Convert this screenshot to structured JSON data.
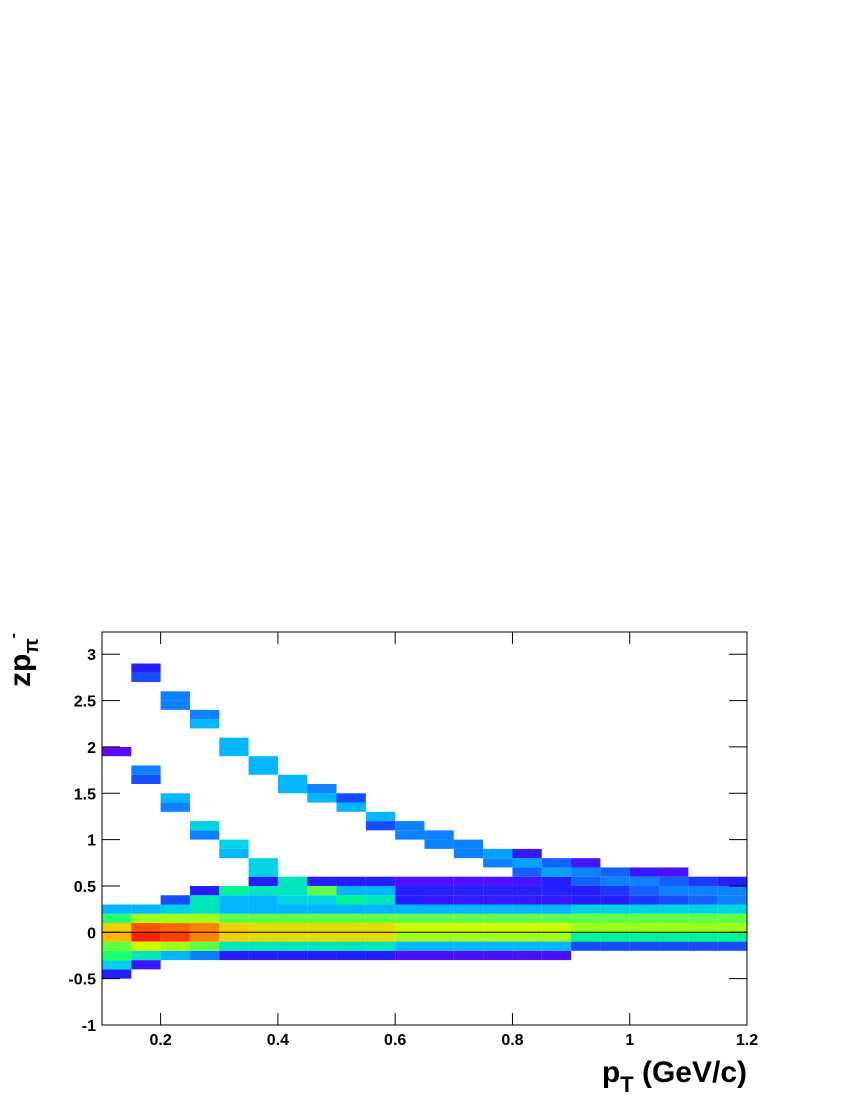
{
  "chart_data": {
    "type": "heatmap",
    "xlabel": [
      "p",
      "T",
      " (GeV/c)"
    ],
    "ylabel": [
      "zp",
      "π",
      "-"
    ],
    "xlim": [
      0.1,
      1.2
    ],
    "ylim": [
      -1,
      3.24
    ],
    "xticks": [
      0.2,
      0.4,
      0.6,
      0.8,
      1,
      1.2
    ],
    "yticks": [
      -1,
      -0.5,
      0,
      0.5,
      1,
      1.5,
      2,
      2.5,
      3
    ],
    "bin_width": [
      0.05,
      0.1
    ],
    "hline": 0,
    "palette": [
      "#7f00ff",
      "#2020ff",
      "#00c8ff",
      "#00ff80",
      "#c8ff00",
      "#ffc000",
      "#ff2000"
    ],
    "columns": [
      {
        "x": 0.125,
        "y": [
          -0.45,
          -0.35,
          -0.25,
          -0.15,
          -0.05,
          0.05,
          0.15,
          0.25,
          1.95
        ],
        "values": [
          15,
          35,
          50,
          55,
          80,
          75,
          50,
          30,
          6
        ]
      },
      {
        "x": 0.175,
        "y": [
          -0.35,
          -0.25,
          -0.15,
          -0.05,
          0.05,
          0.15,
          0.25,
          1.65,
          1.75,
          2.75,
          2.85
        ],
        "values": [
          12,
          40,
          65,
          95,
          90,
          60,
          30,
          20,
          25,
          20,
          15
        ]
      },
      {
        "x": 0.225,
        "y": [
          -0.25,
          -0.15,
          -0.05,
          0.05,
          0.15,
          0.25,
          0.35,
          1.35,
          1.45,
          2.45,
          2.55
        ],
        "values": [
          30,
          60,
          92,
          88,
          60,
          35,
          20,
          25,
          30,
          25,
          25
        ]
      },
      {
        "x": 0.275,
        "y": [
          -0.25,
          -0.15,
          -0.05,
          0.05,
          0.15,
          0.25,
          0.35,
          0.45,
          1.05,
          1.15,
          2.25,
          2.35
        ],
        "values": [
          25,
          55,
          85,
          85,
          60,
          40,
          40,
          15,
          25,
          35,
          30,
          25
        ]
      },
      {
        "x": 0.325,
        "y": [
          -0.25,
          -0.15,
          -0.05,
          0.05,
          0.15,
          0.25,
          0.35,
          0.45,
          0.85,
          0.95,
          1.95,
          2.05
        ],
        "values": [
          15,
          40,
          75,
          75,
          55,
          30,
          30,
          45,
          30,
          35,
          30,
          30
        ]
      },
      {
        "x": 0.375,
        "y": [
          -0.25,
          -0.15,
          -0.05,
          0.05,
          0.15,
          0.25,
          0.35,
          0.45,
          0.55,
          0.65,
          0.75,
          1.75,
          1.85
        ],
        "values": [
          15,
          40,
          72,
          72,
          55,
          30,
          30,
          40,
          15,
          35,
          35,
          30,
          30
        ]
      },
      {
        "x": 0.425,
        "y": [
          -0.25,
          -0.15,
          -0.05,
          0.05,
          0.15,
          0.25,
          0.35,
          0.45,
          0.55,
          1.55,
          1.65
        ],
        "values": [
          15,
          40,
          72,
          72,
          55,
          30,
          35,
          40,
          40,
          30,
          30
        ]
      },
      {
        "x": 0.475,
        "y": [
          -0.25,
          -0.15,
          -0.05,
          0.05,
          0.15,
          0.25,
          0.35,
          0.45,
          0.55,
          1.45,
          1.55
        ],
        "values": [
          15,
          40,
          72,
          72,
          55,
          30,
          35,
          55,
          15,
          30,
          25
        ]
      },
      {
        "x": 0.525,
        "y": [
          -0.25,
          -0.15,
          -0.05,
          0.05,
          0.15,
          0.25,
          0.35,
          0.45,
          0.55,
          1.35,
          1.45
        ],
        "values": [
          15,
          40,
          72,
          72,
          55,
          30,
          45,
          30,
          15,
          30,
          20
        ]
      },
      {
        "x": 0.575,
        "y": [
          -0.25,
          -0.15,
          -0.05,
          0.05,
          0.15,
          0.25,
          0.35,
          0.45,
          0.55,
          1.15,
          1.25
        ],
        "values": [
          15,
          40,
          72,
          72,
          55,
          30,
          40,
          30,
          15,
          20,
          30
        ]
      },
      {
        "x": 0.625,
        "y": [
          -0.25,
          -0.15,
          -0.05,
          0.05,
          0.15,
          0.25,
          0.35,
          0.45,
          0.55,
          1.05,
          1.15
        ],
        "values": [
          8,
          30,
          60,
          65,
          55,
          30,
          15,
          15,
          8,
          25,
          25
        ]
      },
      {
        "x": 0.675,
        "y": [
          -0.25,
          -0.15,
          -0.05,
          0.05,
          0.15,
          0.25,
          0.35,
          0.45,
          0.55,
          0.95,
          1.05
        ],
        "values": [
          8,
          30,
          60,
          65,
          55,
          30,
          12,
          15,
          8,
          25,
          25
        ]
      },
      {
        "x": 0.725,
        "y": [
          -0.25,
          -0.15,
          -0.05,
          0.05,
          0.15,
          0.25,
          0.35,
          0.45,
          0.55,
          0.85,
          0.95
        ],
        "values": [
          8,
          30,
          60,
          65,
          55,
          30,
          12,
          15,
          8,
          25,
          25
        ]
      },
      {
        "x": 0.775,
        "y": [
          -0.25,
          -0.15,
          -0.05,
          0.05,
          0.15,
          0.25,
          0.35,
          0.45,
          0.55,
          0.75,
          0.85
        ],
        "values": [
          8,
          30,
          60,
          65,
          55,
          30,
          12,
          15,
          8,
          25,
          28
        ]
      },
      {
        "x": 0.825,
        "y": [
          -0.25,
          -0.15,
          -0.05,
          0.05,
          0.15,
          0.25,
          0.35,
          0.45,
          0.55,
          0.65,
          0.75,
          0.85
        ],
        "values": [
          8,
          30,
          60,
          65,
          55,
          30,
          12,
          15,
          10,
          22,
          28,
          12
        ]
      },
      {
        "x": 0.875,
        "y": [
          -0.25,
          -0.15,
          -0.05,
          0.05,
          0.15,
          0.25,
          0.35,
          0.45,
          0.55,
          0.65,
          0.75
        ],
        "values": [
          8,
          30,
          60,
          65,
          55,
          30,
          12,
          15,
          15,
          28,
          22
        ]
      },
      {
        "x": 0.925,
        "y": [
          -0.15,
          -0.05,
          0.05,
          0.15,
          0.25,
          0.35,
          0.45,
          0.55,
          0.65,
          0.75
        ],
        "values": [
          20,
          45,
          60,
          55,
          35,
          15,
          15,
          22,
          25,
          10
        ]
      },
      {
        "x": 0.975,
        "y": [
          -0.15,
          -0.05,
          0.05,
          0.15,
          0.25,
          0.35,
          0.45,
          0.55,
          0.65
        ],
        "values": [
          20,
          45,
          60,
          55,
          35,
          15,
          18,
          25,
          22
        ]
      },
      {
        "x": 1.025,
        "y": [
          -0.15,
          -0.05,
          0.05,
          0.15,
          0.25,
          0.35,
          0.45,
          0.55,
          0.65
        ],
        "values": [
          20,
          45,
          60,
          55,
          35,
          18,
          22,
          25,
          12
        ]
      },
      {
        "x": 1.075,
        "y": [
          -0.15,
          -0.05,
          0.05,
          0.15,
          0.25,
          0.35,
          0.45,
          0.55,
          0.65
        ],
        "values": [
          20,
          45,
          60,
          55,
          35,
          20,
          25,
          22,
          8
        ]
      },
      {
        "x": 1.125,
        "y": [
          -0.15,
          -0.05,
          0.05,
          0.15,
          0.25,
          0.35,
          0.45,
          0.55
        ],
        "values": [
          20,
          45,
          60,
          55,
          35,
          22,
          25,
          18
        ]
      },
      {
        "x": 1.175,
        "y": [
          -0.15,
          -0.05,
          0.05,
          0.15,
          0.25,
          0.35,
          0.45,
          0.55
        ],
        "values": [
          20,
          45,
          60,
          55,
          35,
          25,
          25,
          15
        ]
      }
    ]
  }
}
